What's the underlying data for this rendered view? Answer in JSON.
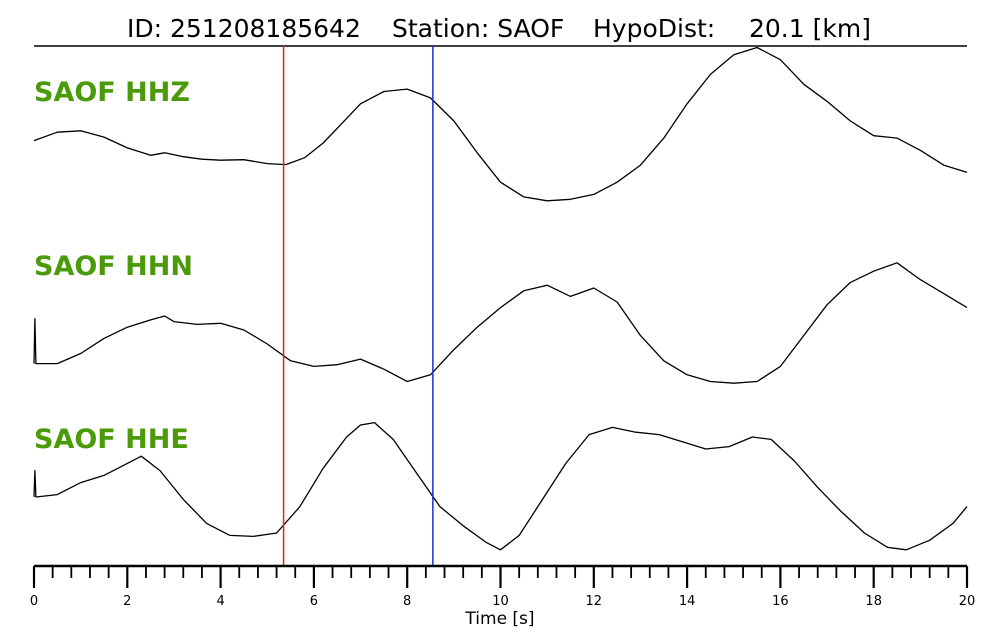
{
  "header": {
    "title_parts": [
      "ID: 251208185642",
      "Station: SAOF",
      "HypoDist:",
      "20.1 [km]"
    ]
  },
  "colors": {
    "channel_label": "#4a9a0a",
    "trace": "#000000",
    "p_pick": "#e8201c",
    "s_pick": "#1f2fd0",
    "axis": "#000000"
  },
  "chart_data": {
    "type": "line",
    "xlabel": "Time [s]",
    "xlim": [
      0,
      20
    ],
    "x_ticks": [
      0,
      2,
      4,
      6,
      8,
      10,
      12,
      14,
      16,
      18,
      20
    ],
    "minor_tick_step": 0.4,
    "picks": [
      {
        "phase": "P",
        "time": 5.35,
        "color": "#e8201c"
      },
      {
        "phase": "S",
        "time": 8.55,
        "color": "#1f2fd0"
      }
    ],
    "series": [
      {
        "name": "SAOF HHZ",
        "x": [
          0,
          0.5,
          1.0,
          1.5,
          2.0,
          2.5,
          2.8,
          3.2,
          3.6,
          4.0,
          4.5,
          5.0,
          5.4,
          5.8,
          6.2,
          6.6,
          7.0,
          7.5,
          8.0,
          8.5,
          9.0,
          9.5,
          10.0,
          10.5,
          11.0,
          11.5,
          12.0,
          12.5,
          13.0,
          13.5,
          14.0,
          14.5,
          15.0,
          15.5,
          16.0,
          16.5,
          17.0,
          17.5,
          18.0,
          18.5,
          19.0,
          19.5,
          20.0
        ],
        "values": [
          0.05,
          0.22,
          0.25,
          0.12,
          -0.1,
          -0.25,
          -0.2,
          -0.28,
          -0.33,
          -0.35,
          -0.34,
          -0.42,
          -0.44,
          -0.3,
          0.0,
          0.4,
          0.8,
          1.05,
          1.1,
          0.92,
          0.45,
          -0.2,
          -0.8,
          -1.1,
          -1.18,
          -1.15,
          -1.05,
          -0.8,
          -0.45,
          0.1,
          0.8,
          1.4,
          1.8,
          1.95,
          1.7,
          1.2,
          0.85,
          0.45,
          0.15,
          0.1,
          -0.15,
          -0.45,
          -0.6
        ]
      },
      {
        "name": "SAOF HHN",
        "x": [
          0,
          0.02,
          0.04,
          0.5,
          1.0,
          1.5,
          2.0,
          2.5,
          2.8,
          3.0,
          3.5,
          4.0,
          4.5,
          5.0,
          5.5,
          6.0,
          6.5,
          7.0,
          7.5,
          8.0,
          8.5,
          9.0,
          9.5,
          10.0,
          10.5,
          11.0,
          11.5,
          12.0,
          12.5,
          13.0,
          13.5,
          14.0,
          14.5,
          15.0,
          15.5,
          16.0,
          16.5,
          17.0,
          17.5,
          18.0,
          18.5,
          19.0,
          19.5,
          20.0
        ],
        "values": [
          -0.1,
          0.7,
          -0.1,
          -0.1,
          0.08,
          0.35,
          0.55,
          0.68,
          0.75,
          0.65,
          0.6,
          0.62,
          0.5,
          0.25,
          -0.05,
          -0.15,
          -0.12,
          -0.02,
          -0.2,
          -0.42,
          -0.3,
          0.15,
          0.55,
          0.9,
          1.2,
          1.3,
          1.1,
          1.25,
          1.0,
          0.4,
          -0.05,
          -0.3,
          -0.42,
          -0.45,
          -0.42,
          -0.15,
          0.4,
          0.95,
          1.35,
          1.55,
          1.7,
          1.4,
          1.15,
          0.9
        ]
      },
      {
        "name": "SAOF HHE",
        "x": [
          0,
          0.02,
          0.04,
          0.5,
          1.0,
          1.5,
          2.0,
          2.3,
          2.7,
          3.2,
          3.7,
          4.2,
          4.7,
          5.2,
          5.7,
          6.2,
          6.7,
          7.0,
          7.3,
          7.7,
          8.2,
          8.7,
          9.2,
          9.7,
          10.0,
          10.4,
          10.9,
          11.4,
          11.9,
          12.4,
          12.9,
          13.4,
          13.9,
          14.4,
          14.9,
          15.4,
          15.8,
          16.3,
          16.8,
          17.3,
          17.8,
          18.3,
          18.7,
          19.2,
          19.7,
          20.0
        ],
        "values": [
          0.0,
          0.55,
          0.0,
          0.05,
          0.3,
          0.45,
          0.7,
          0.85,
          0.55,
          -0.05,
          -0.55,
          -0.8,
          -0.82,
          -0.75,
          -0.2,
          0.6,
          1.25,
          1.5,
          1.55,
          1.2,
          0.5,
          -0.2,
          -0.6,
          -0.95,
          -1.1,
          -0.8,
          -0.05,
          0.7,
          1.3,
          1.45,
          1.35,
          1.3,
          1.15,
          1.0,
          1.05,
          1.25,
          1.2,
          0.75,
          0.2,
          -0.3,
          -0.75,
          -1.05,
          -1.1,
          -0.9,
          -0.55,
          -0.2
        ]
      }
    ]
  }
}
